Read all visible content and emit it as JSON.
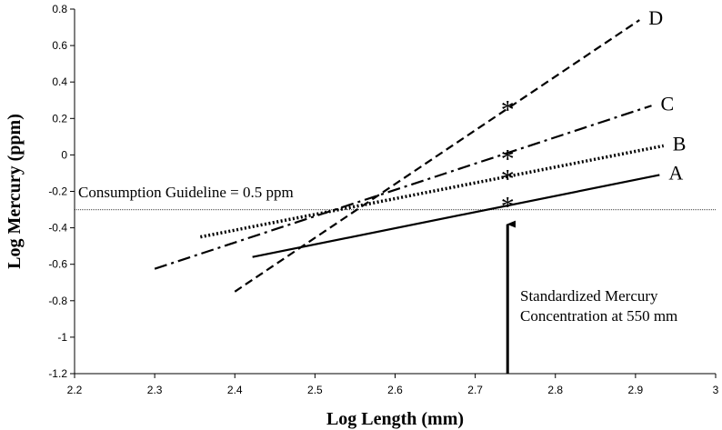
{
  "chart_data": {
    "type": "line",
    "title": "",
    "xlabel": "Log Length (mm)",
    "ylabel": "Log Mercury (ppm)",
    "xlim": [
      2.2,
      3.0
    ],
    "ylim": [
      -1.2,
      0.8
    ],
    "x_ticks": [
      "2.2",
      "2.3",
      "2.4",
      "2.5",
      "2.6",
      "2.7",
      "2.8",
      "2.9",
      "3"
    ],
    "y_ticks": [
      "-1.2",
      "-1",
      "-0.8",
      "-0.6",
      "-0.4",
      "-0.2",
      "0",
      "0.2",
      "0.4",
      "0.6",
      "0.8"
    ],
    "grid": false,
    "series": [
      {
        "name": "A",
        "style": "solid",
        "x": [
          2.422,
          2.93
        ],
        "y": [
          -0.56,
          -0.11
        ]
      },
      {
        "name": "B",
        "style": "dotted",
        "x": [
          2.357,
          2.935
        ],
        "y": [
          -0.45,
          0.05
        ]
      },
      {
        "name": "C",
        "style": "dashdot",
        "x": [
          2.3,
          2.92
        ],
        "y": [
          -0.625,
          0.27
        ]
      },
      {
        "name": "D",
        "style": "dashed",
        "x": [
          2.4,
          2.905
        ],
        "y": [
          -0.75,
          0.74
        ]
      }
    ],
    "markers": {
      "symbol": "*",
      "x": 2.7404,
      "y": [
        -0.26,
        -0.11,
        0.0,
        0.27
      ]
    },
    "guideline": {
      "label": "Consumption Guideline = 0.5 ppm",
      "y": -0.301
    },
    "arrow": {
      "x": 2.7404,
      "label_lines": [
        "Standardized Mercury",
        "Concentration at 550 mm"
      ]
    }
  }
}
